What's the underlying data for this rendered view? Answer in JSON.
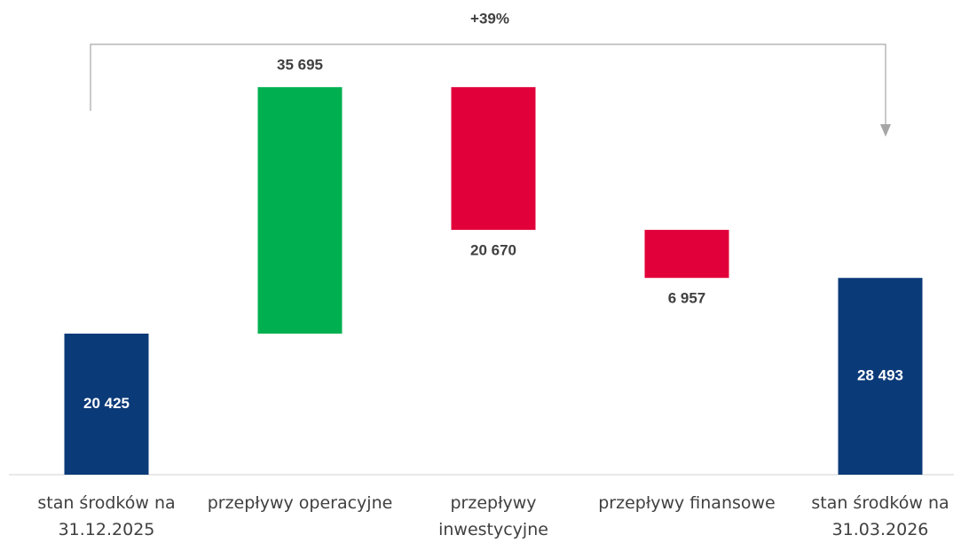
{
  "chart_data": {
    "type": "waterfall",
    "categories": [
      "stan środków na 31.12.2025",
      "przepływy operacyjne",
      "przepływy inwestycyjne",
      "przepływy finansowe",
      "stan środków na 31.03.2026"
    ],
    "measures": [
      "absolute",
      "relative",
      "relative",
      "relative",
      "total"
    ],
    "values": [
      20425,
      35695,
      -20670,
      -6957,
      28493
    ],
    "value_labels": [
      "20 425",
      "35 695",
      "20 670",
      "6 957",
      "28 493"
    ],
    "colors": [
      "#0b3a78",
      "#00b050",
      "#e2003a",
      "#e2003a",
      "#0b3a78"
    ],
    "ylim": [
      0,
      60000
    ],
    "annotation": "+39%"
  }
}
